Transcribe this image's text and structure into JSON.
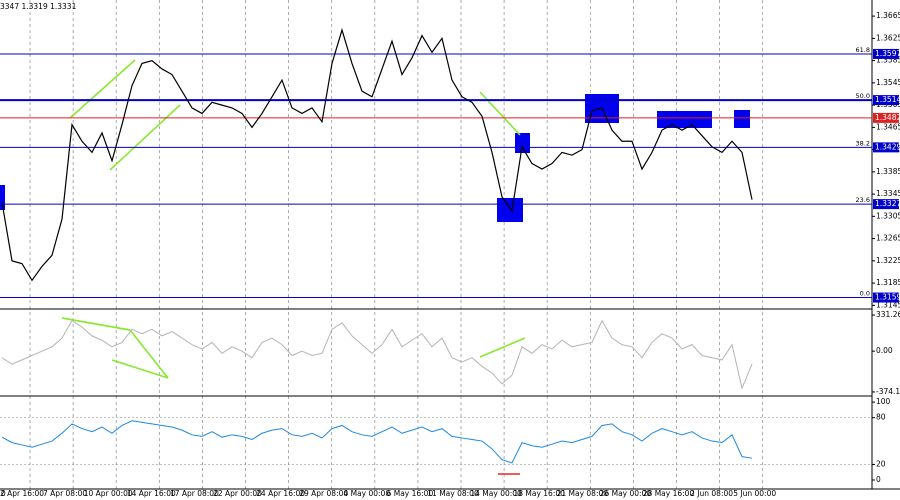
{
  "chart_data": [
    {
      "type": "line",
      "title": "3347 1.3319 1.3331",
      "color": "#000000",
      "ylim": [
        1.3142,
        1.3685
      ],
      "yticks": [
        1.3665,
        1.3625,
        1.3585,
        1.3545,
        1.3505,
        1.3465,
        1.3425,
        1.3385,
        1.3345,
        1.3305,
        1.3265,
        1.3225,
        1.3185,
        1.3145
      ],
      "levels": [
        {
          "price": 1.3597,
          "fib": "61.8",
          "color": "#0000cc"
        },
        {
          "price": 1.3514,
          "fib": "50.0",
          "color": "#0000cc"
        },
        {
          "price": 1.3482,
          "color": "#dd2222"
        },
        {
          "price": 1.3429,
          "fib": "38.2",
          "color": "#0000cc"
        },
        {
          "price": 1.3327,
          "fib": "23.6",
          "color": "#0000cc"
        },
        {
          "price": 1.3159,
          "fib": "0.0",
          "color": "#0000cc"
        }
      ],
      "values": [
        1.333,
        1.3225,
        1.322,
        1.319,
        1.3215,
        1.3235,
        1.33,
        1.347,
        1.344,
        1.342,
        1.3455,
        1.3405,
        1.347,
        1.354,
        1.358,
        1.3585,
        1.357,
        1.356,
        1.353,
        1.35,
        1.349,
        1.351,
        1.3505,
        1.35,
        1.349,
        1.3465,
        1.349,
        1.352,
        1.355,
        1.35,
        1.349,
        1.35,
        1.3475,
        1.358,
        1.364,
        1.358,
        1.353,
        1.352,
        1.357,
        1.362,
        1.356,
        1.359,
        1.363,
        1.36,
        1.3625,
        1.355,
        1.352,
        1.351,
        1.3485,
        1.342,
        1.334,
        1.3315,
        1.343,
        1.34,
        1.339,
        1.34,
        1.342,
        1.3415,
        1.3425,
        1.3495,
        1.35,
        1.346,
        1.344,
        1.344,
        1.339,
        1.342,
        1.346,
        1.347,
        1.346,
        1.347,
        1.345,
        1.343,
        1.342,
        1.344,
        1.342,
        1.3335
      ]
    },
    {
      "type": "line",
      "color": "#b4b4b4",
      "ylim": [
        -402,
        359
      ],
      "yticks": [
        331.2603,
        {
          "value": 0,
          "label": "0.00"
        },
        -374.144
      ],
      "values": [
        -60,
        -120,
        -80,
        -40,
        0,
        40,
        120,
        280,
        220,
        140,
        100,
        40,
        80,
        200,
        160,
        200,
        140,
        180,
        120,
        60,
        20,
        80,
        -20,
        40,
        0,
        -60,
        80,
        120,
        60,
        -40,
        0,
        -40,
        -20,
        200,
        260,
        140,
        60,
        -20,
        60,
        200,
        40,
        100,
        160,
        40,
        120,
        -60,
        -100,
        -60,
        -140,
        -200,
        -300,
        -220,
        40,
        -20,
        60,
        20,
        100,
        40,
        60,
        80,
        280,
        120,
        60,
        40,
        -60,
        80,
        160,
        120,
        20,
        60,
        -40,
        -60,
        -80,
        60,
        -340,
        -120
      ]
    },
    {
      "type": "line",
      "color": "#1e88e5",
      "ylim": [
        -9,
        104
      ],
      "yticks": [
        100,
        80,
        20,
        0
      ],
      "values": [
        55,
        48,
        45,
        42,
        46,
        50,
        60,
        72,
        66,
        62,
        68,
        60,
        70,
        76,
        74,
        72,
        70,
        68,
        64,
        58,
        56,
        62,
        55,
        58,
        56,
        52,
        60,
        64,
        66,
        58,
        56,
        60,
        54,
        66,
        70,
        62,
        58,
        56,
        62,
        68,
        60,
        64,
        68,
        62,
        66,
        56,
        54,
        52,
        50,
        40,
        26,
        22,
        48,
        44,
        42,
        46,
        50,
        48,
        52,
        56,
        70,
        72,
        62,
        58,
        50,
        60,
        66,
        62,
        58,
        62,
        54,
        50,
        48,
        58,
        30,
        28
      ],
      "x_labels": [
        "0",
        "2 Apr 16:00",
        "7 Apr 08:00",
        "10 Apr 00:00",
        "14 Apr 16:00",
        "17 Apr 08:00",
        "22 Apr 00:00",
        "24 Apr 16:00",
        "29 Apr 08:00",
        "4 May 00:00",
        "6 May 16:00",
        "11 May 08:00",
        "14 May 00:00",
        "18 May 16:00",
        "21 May 08:00",
        "26 May 00:00",
        "28 May 16:00",
        "2 Jun 08:00",
        "5 Jun 00:00"
      ]
    }
  ]
}
